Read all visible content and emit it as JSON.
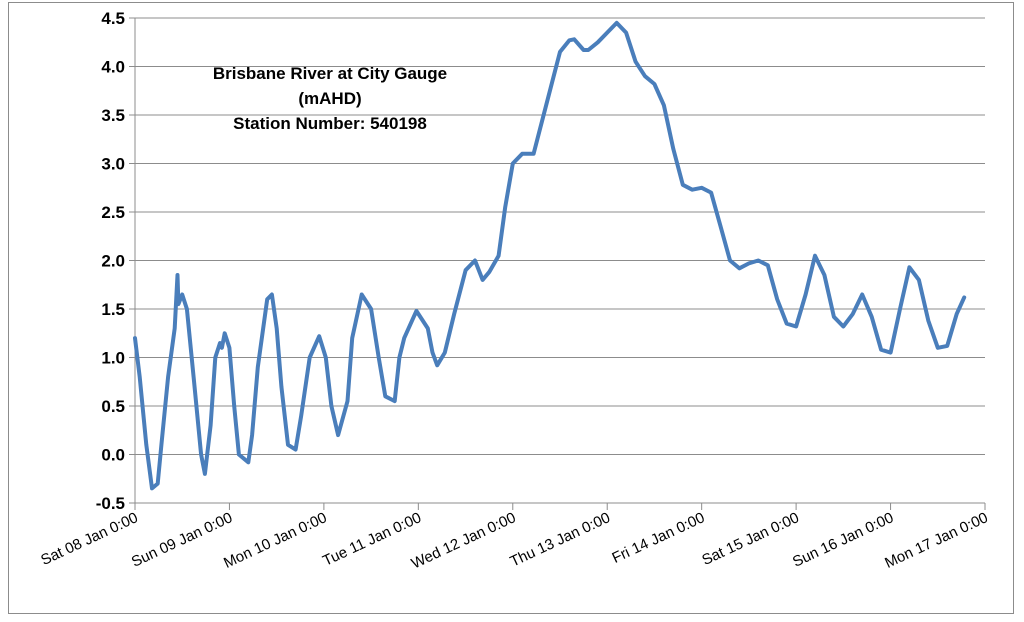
{
  "chart_data": {
    "type": "line",
    "title_lines": [
      "Brisbane River at City Gauge",
      "(mAHD)",
      "Station Number: 540198"
    ],
    "xlabel": "",
    "ylabel": "",
    "ylim": [
      -0.5,
      4.5
    ],
    "y_ticks": [
      -0.5,
      0.0,
      0.5,
      1.0,
      1.5,
      2.0,
      2.5,
      3.0,
      3.5,
      4.0,
      4.5
    ],
    "y_tick_labels": [
      "-0.5",
      "0.0",
      "0.5",
      "1.0",
      "1.5",
      "2.0",
      "2.5",
      "3.0",
      "3.5",
      "4.0",
      "4.5"
    ],
    "x_unit": "days since Sat 08 Jan 0:00",
    "xlim": [
      0,
      9
    ],
    "x_tick_labels": [
      "Sat 08 Jan 0:00",
      "Sun 09 Jan 0:00",
      "Mon 10 Jan 0:00",
      "Tue 11 Jan 0:00",
      "Wed 12 Jan 0:00",
      "Thu 13 Jan 0:00",
      "Fri 14 Jan 0:00",
      "Sat 15 Jan 0:00",
      "Sun 16 Jan 0:00",
      "Mon 17 Jan 0:00"
    ],
    "grid": "horizontal",
    "series": [
      {
        "color": "#4a7ebb",
        "x": [
          0.0,
          0.05,
          0.12,
          0.18,
          0.24,
          0.28,
          0.35,
          0.42,
          0.45,
          0.46,
          0.5,
          0.55,
          0.62,
          0.7,
          0.74,
          0.8,
          0.85,
          0.9,
          0.92,
          0.95,
          1.0,
          1.05,
          1.1,
          1.2,
          1.24,
          1.3,
          1.4,
          1.45,
          1.5,
          1.55,
          1.62,
          1.7,
          1.76,
          1.85,
          1.95,
          2.02,
          2.08,
          2.15,
          2.25,
          2.3,
          2.4,
          2.5,
          2.58,
          2.65,
          2.75,
          2.8,
          2.85,
          2.98,
          3.1,
          3.15,
          3.2,
          3.28,
          3.38,
          3.5,
          3.6,
          3.68,
          3.75,
          3.85,
          3.92,
          4.0,
          4.1,
          4.22,
          4.3,
          4.42,
          4.5,
          4.6,
          4.65,
          4.75,
          4.8,
          4.9,
          5.0,
          5.1,
          5.2,
          5.3,
          5.4,
          5.5,
          5.6,
          5.7,
          5.8,
          5.9,
          6.0,
          6.1,
          6.2,
          6.3,
          6.4,
          6.5,
          6.6,
          6.7,
          6.8,
          6.9,
          7.0,
          7.1,
          7.2,
          7.3,
          7.4,
          7.5,
          7.6,
          7.7,
          7.8,
          7.9,
          8.0,
          8.1,
          8.2,
          8.3,
          8.4,
          8.5,
          8.6,
          8.7,
          8.78
        ],
        "y": [
          1.2,
          0.8,
          0.1,
          -0.35,
          -0.3,
          0.1,
          0.8,
          1.3,
          1.85,
          1.55,
          1.65,
          1.5,
          0.8,
          0.0,
          -0.2,
          0.3,
          1.0,
          1.15,
          1.1,
          1.25,
          1.1,
          0.5,
          0.0,
          -0.08,
          0.2,
          0.9,
          1.6,
          1.65,
          1.3,
          0.7,
          0.1,
          0.05,
          0.4,
          1.0,
          1.22,
          1.0,
          0.5,
          0.2,
          0.55,
          1.2,
          1.65,
          1.5,
          1.0,
          0.6,
          0.55,
          1.0,
          1.2,
          1.48,
          1.3,
          1.05,
          0.92,
          1.05,
          1.45,
          1.9,
          2.0,
          1.8,
          1.88,
          2.05,
          2.55,
          3.0,
          3.1,
          3.1,
          3.4,
          3.85,
          4.15,
          4.27,
          4.28,
          4.17,
          4.17,
          4.25,
          4.35,
          4.45,
          4.35,
          4.05,
          3.9,
          3.82,
          3.6,
          3.15,
          2.78,
          2.73,
          2.75,
          2.7,
          2.35,
          2.0,
          1.92,
          1.97,
          2.0,
          1.95,
          1.6,
          1.35,
          1.32,
          1.65,
          2.05,
          1.85,
          1.42,
          1.32,
          1.45,
          1.65,
          1.42,
          1.08,
          1.05,
          1.5,
          1.93,
          1.8,
          1.38,
          1.1,
          1.12,
          1.45,
          1.62
        ]
      }
    ]
  }
}
